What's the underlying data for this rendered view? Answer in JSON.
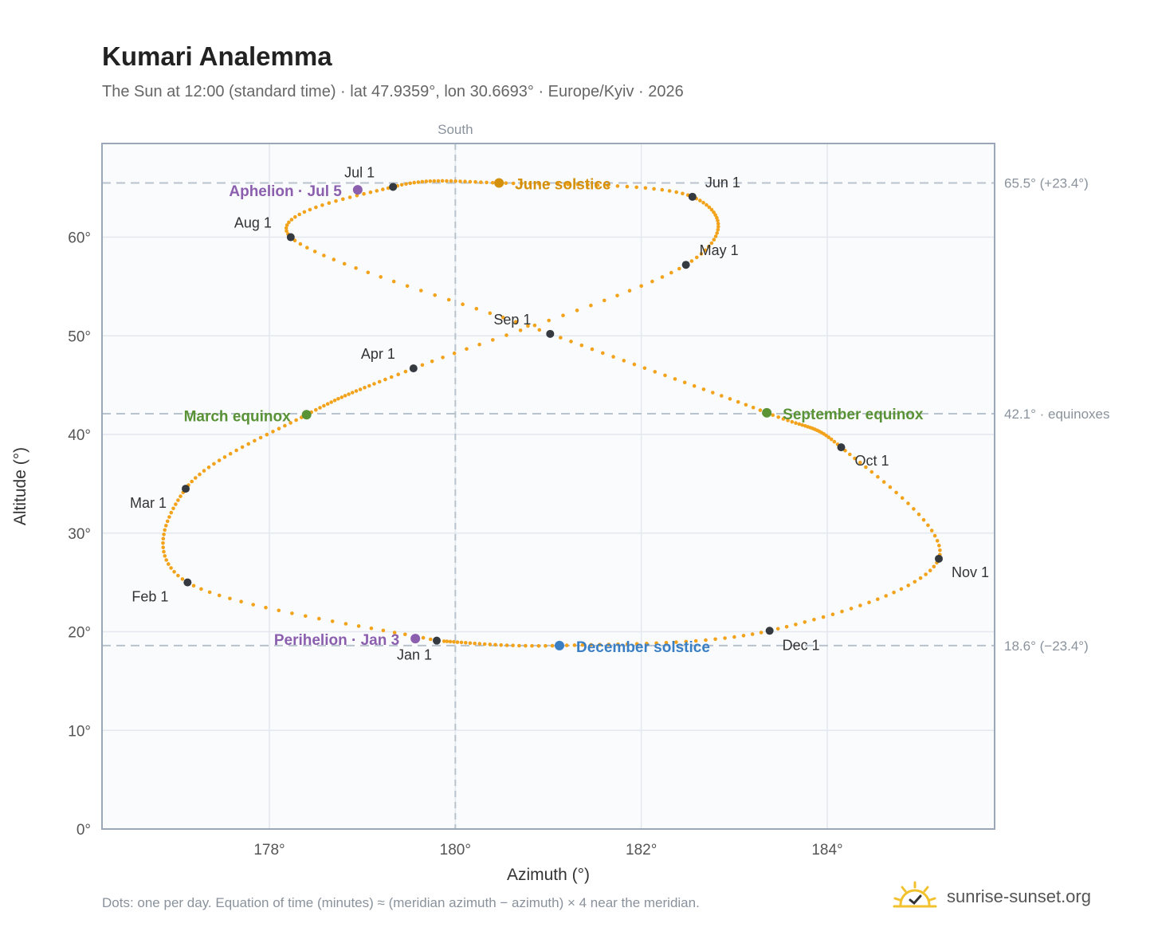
{
  "title": "Kumari Analemma",
  "subtitle": "The Sun at 12:00 (standard time) · lat 47.9359°, lon 30.6693° · Europe/Kyiv · 2026",
  "footnote": "Dots: one per day. Equation of time (minutes) ≈ (meridian azimuth − azimuth) × 4 near the meridian.",
  "brand": {
    "name": "sunrise-sunset.org",
    "icon": "sun-check-icon"
  },
  "colors": {
    "analemma": "#f2a31b",
    "month_marker": "#343a40",
    "aphelion": "#8b5fae",
    "perihelion": "#8b5fae",
    "june_solstice": "#d4900a",
    "december_solstice": "#3a7fc4",
    "equinox": "#5a9236",
    "plot_bg": "#f9fbfd",
    "frame": "#9aa7b8",
    "grid": "#e3e8ee",
    "refline": "#b9c3cd"
  },
  "chart_data": {
    "type": "scatter",
    "xlabel": "Azimuth (°)",
    "ylabel": "Altitude (°)",
    "xlim": [
      176.2,
      185.8
    ],
    "ylim": [
      0,
      69.5
    ],
    "x_ticks": [
      178,
      180,
      182,
      184
    ],
    "x_tick_labels": [
      "178°",
      "180°",
      "182°",
      "184°"
    ],
    "y_ticks": [
      0,
      10,
      20,
      30,
      40,
      50,
      60
    ],
    "y_tick_labels": [
      "0°",
      "10°",
      "20°",
      "30°",
      "40°",
      "50°",
      "60°"
    ],
    "grid": true,
    "meridian": {
      "azimuth": 180,
      "label": "South"
    },
    "reference_lines": [
      {
        "altitude": 65.5,
        "label": "65.5° (+23.4°)"
      },
      {
        "altitude": 42.1,
        "label": "42.1° · equinoxes"
      },
      {
        "altitude": 18.6,
        "label": "18.6° (−23.4°)"
      }
    ],
    "daily_path": {
      "name": "One dot per day",
      "points_per_year": 365,
      "anchors": [
        {
          "date": "Jan 1",
          "az": 179.8,
          "alt": 19.1
        },
        {
          "date": "Feb 1",
          "az": 177.12,
          "alt": 25.0
        },
        {
          "date": "Mar 1",
          "az": 177.1,
          "alt": 34.5
        },
        {
          "date": "Mar 20",
          "az": 178.4,
          "alt": 42.0
        },
        {
          "date": "Apr 1",
          "az": 179.55,
          "alt": 46.7
        },
        {
          "date": "May 1",
          "az": 182.48,
          "alt": 57.2
        },
        {
          "date": "Jun 1",
          "az": 182.55,
          "alt": 64.1
        },
        {
          "date": "Jun 21",
          "az": 180.47,
          "alt": 65.5
        },
        {
          "date": "Jul 1",
          "az": 179.33,
          "alt": 65.1
        },
        {
          "date": "Aug 1",
          "az": 178.23,
          "alt": 60.0
        },
        {
          "date": "Sep 1",
          "az": 181.02,
          "alt": 50.2
        },
        {
          "date": "Sep 23",
          "az": 183.35,
          "alt": 42.2
        },
        {
          "date": "Oct 1",
          "az": 184.15,
          "alt": 38.7
        },
        {
          "date": "Nov 1",
          "az": 185.2,
          "alt": 27.4
        },
        {
          "date": "Dec 1",
          "az": 183.38,
          "alt": 20.1
        },
        {
          "date": "Dec 21",
          "az": 181.12,
          "alt": 18.6
        },
        {
          "date": "Dec 31",
          "az": 179.85,
          "alt": 19.05
        }
      ]
    },
    "month_markers": [
      {
        "label": "Jan 1",
        "az": 179.8,
        "alt": 19.1,
        "anchor": "start",
        "dx": -50,
        "dy": 24
      },
      {
        "label": "Feb 1",
        "az": 177.12,
        "alt": 25.0,
        "anchor": "start",
        "dx": -70,
        "dy": 24
      },
      {
        "label": "Mar 1",
        "az": 177.1,
        "alt": 34.5,
        "anchor": "start",
        "dx": -70,
        "dy": 24
      },
      {
        "label": "Apr 1",
        "az": 179.55,
        "alt": 46.7,
        "anchor": "start",
        "dx": -66,
        "dy": -12
      },
      {
        "label": "May 1",
        "az": 182.48,
        "alt": 57.2,
        "anchor": "start",
        "dx": 17,
        "dy": -12
      },
      {
        "label": "Jun 1",
        "az": 182.55,
        "alt": 64.1,
        "anchor": "start",
        "dx": 16,
        "dy": -12
      },
      {
        "label": "Jul 1",
        "az": 179.33,
        "alt": 65.1,
        "anchor": "start",
        "dx": -61,
        "dy": -12
      },
      {
        "label": "Aug 1",
        "az": 178.23,
        "alt": 60.0,
        "anchor": "start",
        "dx": -71,
        "dy": -12
      },
      {
        "label": "Sep 1",
        "az": 181.02,
        "alt": 50.2,
        "anchor": "start",
        "dx": -71,
        "dy": -12
      },
      {
        "label": "Oct 1",
        "az": 184.15,
        "alt": 38.7,
        "anchor": "start",
        "dx": 17,
        "dy": 23
      },
      {
        "label": "Nov 1",
        "az": 185.2,
        "alt": 27.4,
        "anchor": "start",
        "dx": 16,
        "dy": 23
      },
      {
        "label": "Dec 1",
        "az": 183.38,
        "alt": 20.1,
        "anchor": "start",
        "dx": 16,
        "dy": 24
      }
    ],
    "events": [
      {
        "label": "June solstice",
        "az": 180.47,
        "alt": 65.5,
        "color_key": "june_solstice",
        "anchor": "start",
        "dx": 20,
        "dy": 8
      },
      {
        "label": "December solstice",
        "az": 181.12,
        "alt": 18.6,
        "color_key": "december_solstice",
        "anchor": "start",
        "dx": 21,
        "dy": 8
      },
      {
        "label": "March equinox",
        "az": 178.4,
        "alt": 42.0,
        "color_key": "equinox",
        "anchor": "end",
        "dx": -20,
        "dy": 8
      },
      {
        "label": "September equinox",
        "az": 183.35,
        "alt": 42.2,
        "color_key": "equinox",
        "anchor": "start",
        "dx": 20,
        "dy": 8
      },
      {
        "label": "Aphelion · Jul 5",
        "az": 178.95,
        "alt": 64.8,
        "color_key": "aphelion",
        "anchor": "end",
        "dx": -20,
        "dy": 8
      },
      {
        "label": "Perihelion · Jan 3",
        "az": 179.57,
        "alt": 19.3,
        "color_key": "perihelion",
        "anchor": "end",
        "dx": -20,
        "dy": 8
      }
    ]
  }
}
